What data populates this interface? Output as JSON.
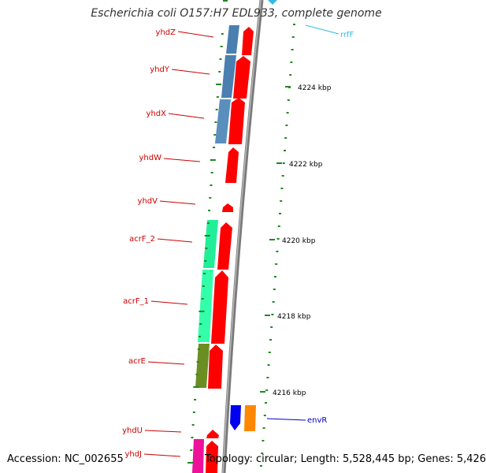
{
  "title": "Escherichia coli O157:H7 EDL933, complete genome",
  "footer": {
    "accession": "Accession: NC_002655",
    "topology": "Topology: circular; Length: 5,528,445 bp; Genes: 5,426"
  },
  "scale_labels": [
    "4224 kbp",
    "4222 kbp",
    "4220 kbp",
    "4218 kbp",
    "4216 kbp"
  ],
  "genes_left": [
    {
      "name": "yhdZ",
      "color": "#cc0000"
    },
    {
      "name": "yhdY",
      "color": "#cc0000"
    },
    {
      "name": "yhdX",
      "color": "#cc0000"
    },
    {
      "name": "yhdW",
      "color": "#cc0000"
    },
    {
      "name": "yhdV",
      "color": "#cc0000"
    },
    {
      "name": "acrF_2",
      "color": "#cc0000"
    },
    {
      "name": "acrF_1",
      "color": "#cc0000"
    },
    {
      "name": "acrE",
      "color": "#cc0000"
    },
    {
      "name": "yhdU",
      "color": "#cc0000"
    },
    {
      "name": "yhdJ",
      "color": "#cc0000"
    }
  ],
  "genes_right": [
    {
      "name": "rrfF",
      "color": "#33bbdd"
    },
    {
      "name": "envR",
      "color": "#0000cc"
    }
  ],
  "colors": {
    "backbone": "#888888",
    "forward_cds": "#ff0000",
    "reverse_cds": "#0000ee",
    "tick": "#228822",
    "cog_blue": "#4a7fb0",
    "cog_green": "#22ee99",
    "cog_olive": "#6b8e23",
    "cog_magenta": "#ee1199",
    "cog_orange": "#ff8800"
  }
}
